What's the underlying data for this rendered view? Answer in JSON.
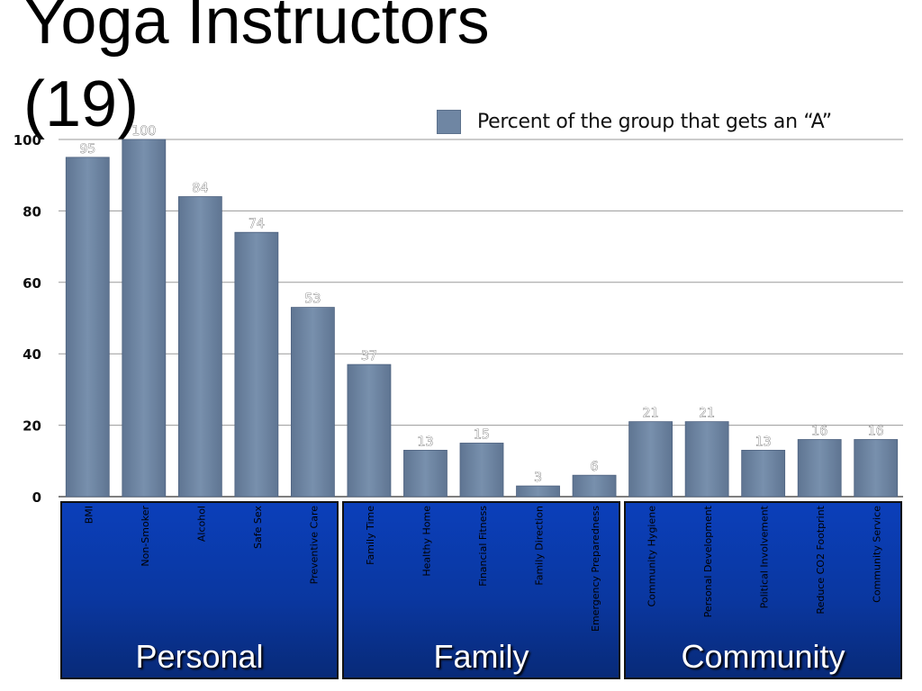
{
  "title_lines": [
    "Yoga Instructors",
    "(19)"
  ],
  "legend": {
    "label": "Percent of the group that gets an  “A”",
    "color": "#6f86a3"
  },
  "groups": [
    "Personal",
    "Family",
    "Community"
  ],
  "chart_data": {
    "type": "bar",
    "title": "Yoga Instructors (19)",
    "ylim": [
      0,
      100
    ],
    "yticks": [
      0,
      20,
      40,
      60,
      80,
      100
    ],
    "grid": true,
    "legend_position": "top-right",
    "categories": [
      "BMI",
      "Non-Smoker",
      "Alcohol",
      "Safe Sex",
      "Preventive Care",
      "Family Time",
      "Healthy Home",
      "Financial Fitness",
      "Family Direction",
      "Emergency Preparedness",
      "Community Hygiene",
      "Personal Development",
      "Political Involvement",
      "Reduce CO2 Footprint",
      "Community Service"
    ],
    "series": [
      {
        "name": "Percent of the group that gets an  “A”",
        "values": [
          95,
          100,
          84,
          74,
          53,
          37,
          13,
          15,
          3,
          6,
          21,
          21,
          13,
          16,
          16
        ]
      }
    ],
    "category_groups": [
      {
        "name": "Personal",
        "start": 0,
        "end": 4
      },
      {
        "name": "Family",
        "start": 5,
        "end": 9
      },
      {
        "name": "Community",
        "start": 10,
        "end": 14
      }
    ]
  }
}
